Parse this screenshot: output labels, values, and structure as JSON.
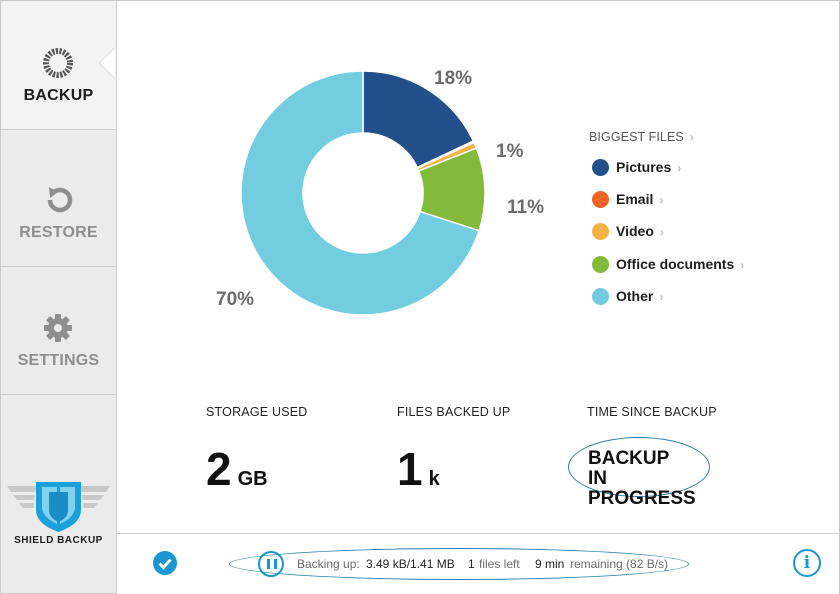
{
  "nav": {
    "backup_label": "BACKUP",
    "restore_label": "RESTORE",
    "settings_label": "SETTINGS",
    "active": "backup"
  },
  "logo": {
    "text": "SHIELD BACKUP"
  },
  "legend": {
    "title": "BIGGEST FILES",
    "chevron": "›",
    "items": [
      {
        "label": "Pictures",
        "color": "#23508a"
      },
      {
        "label": "Email",
        "color": "#ee6424"
      },
      {
        "label": "Video",
        "color": "#f5b142"
      },
      {
        "label": "Office documents",
        "color": "#84ba3c"
      },
      {
        "label": "Other",
        "color": "#72cde0"
      }
    ]
  },
  "chart_data": {
    "type": "pie",
    "donut": true,
    "slices": [
      {
        "label": "Pictures",
        "value": 18,
        "percent_label": "18%",
        "color": "#23508a"
      },
      {
        "label": "Email",
        "value": 0.2,
        "percent_label": "",
        "color": "#ee6424"
      },
      {
        "label": "Video",
        "value": 0.8,
        "percent_label": "1%",
        "color": "#f5b142"
      },
      {
        "label": "Office documents",
        "value": 11,
        "percent_label": "11%",
        "color": "#84ba3c"
      },
      {
        "label": "Other",
        "value": 70,
        "percent_label": "70%",
        "color": "#72cde0"
      }
    ]
  },
  "stats": {
    "storage": {
      "label": "STORAGE USED",
      "value": "2",
      "unit": "GB"
    },
    "files": {
      "label": "FILES BACKED UP",
      "value": "1",
      "unit": "k"
    },
    "time": {
      "label": "TIME SINCE BACKUP",
      "line1": "BACKUP",
      "line2": "IN PROGRESS"
    }
  },
  "status_bar": {
    "backing_up_label": "Backing up:",
    "progress": "3.49 kB/1.41 MB",
    "files_left_value": "1",
    "files_left_label": "files left",
    "time_value": "9 min",
    "time_label": "remaining (82 B/s)",
    "info_glyph": "i"
  }
}
